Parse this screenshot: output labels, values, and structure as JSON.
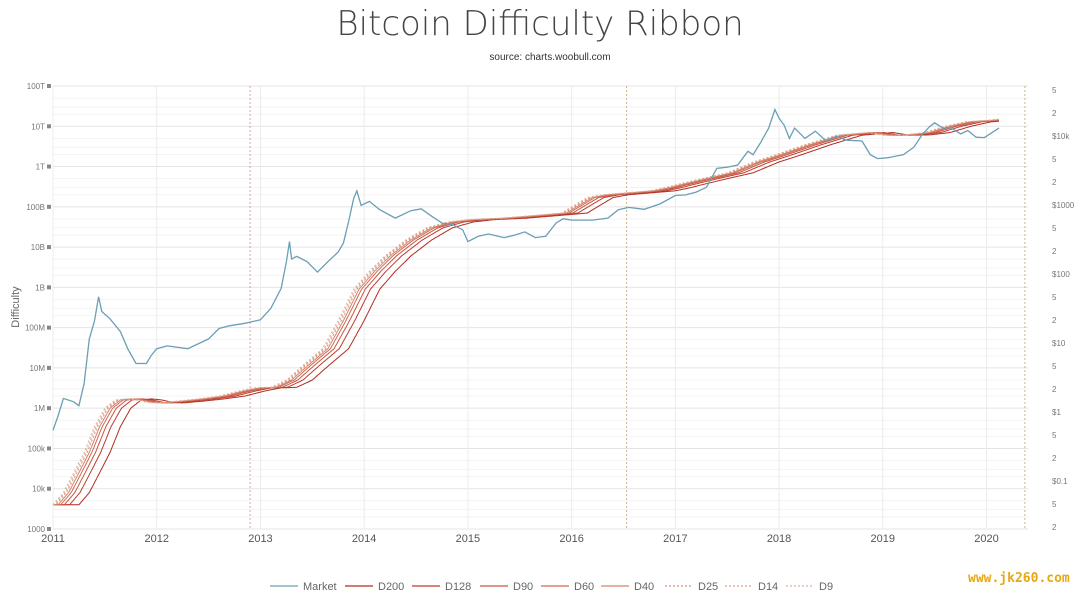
{
  "chart_data": {
    "type": "line",
    "title": "Bitcoin Difficulty Ribbon",
    "subtitle": "source: charts.woobull.com",
    "ylabel": "Difficulty",
    "yscale": "log",
    "left_ticks": [
      "100T",
      "10T",
      "1T",
      "100B",
      "10B",
      "1B",
      "100M",
      "10M",
      "1M",
      "100k",
      "10k",
      "1000"
    ],
    "right_ticks": [
      "5",
      "2",
      "$10k",
      "5",
      "2",
      "$1000",
      "5",
      "2",
      "$100",
      "5",
      "2",
      "$10",
      "5",
      "2",
      "$1",
      "5",
      "2",
      "$0.1",
      "5",
      "2"
    ],
    "x_ticks": [
      "2011",
      "2012",
      "2013",
      "2014",
      "2015",
      "2016",
      "2017",
      "2018",
      "2019",
      "2020"
    ],
    "halving_markers": [
      2012.9,
      2016.53,
      2020.37
    ],
    "market_price": {
      "name": "Market",
      "color": "#6a9fb5",
      "points": [
        [
          2011.0,
          0.3
        ],
        [
          2011.05,
          0.5
        ],
        [
          2011.1,
          0.9
        ],
        [
          2011.2,
          0.8
        ],
        [
          2011.25,
          0.7
        ],
        [
          2011.3,
          1.5
        ],
        [
          2011.35,
          7
        ],
        [
          2011.4,
          13
        ],
        [
          2011.44,
          30
        ],
        [
          2011.47,
          18
        ],
        [
          2011.55,
          14
        ],
        [
          2011.65,
          9
        ],
        [
          2011.72,
          5
        ],
        [
          2011.8,
          3
        ],
        [
          2011.9,
          3
        ],
        [
          2011.95,
          4
        ],
        [
          2012.0,
          5
        ],
        [
          2012.1,
          5.5
        ],
        [
          2012.3,
          5
        ],
        [
          2012.5,
          7
        ],
        [
          2012.6,
          10
        ],
        [
          2012.7,
          11
        ],
        [
          2012.85,
          12
        ],
        [
          2013.0,
          13.5
        ],
        [
          2013.1,
          20
        ],
        [
          2013.2,
          40
        ],
        [
          2013.25,
          100
        ],
        [
          2013.28,
          200
        ],
        [
          2013.3,
          110
        ],
        [
          2013.35,
          120
        ],
        [
          2013.45,
          100
        ],
        [
          2013.55,
          70
        ],
        [
          2013.65,
          100
        ],
        [
          2013.75,
          140
        ],
        [
          2013.8,
          190
        ],
        [
          2013.85,
          400
        ],
        [
          2013.9,
          900
        ],
        [
          2013.93,
          1150
        ],
        [
          2013.97,
          700
        ],
        [
          2014.05,
          800
        ],
        [
          2014.15,
          600
        ],
        [
          2014.3,
          450
        ],
        [
          2014.45,
          580
        ],
        [
          2014.55,
          620
        ],
        [
          2014.65,
          480
        ],
        [
          2014.75,
          380
        ],
        [
          2014.85,
          360
        ],
        [
          2014.95,
          300
        ],
        [
          2015.0,
          200
        ],
        [
          2015.1,
          240
        ],
        [
          2015.2,
          260
        ],
        [
          2015.35,
          230
        ],
        [
          2015.45,
          250
        ],
        [
          2015.55,
          280
        ],
        [
          2015.65,
          230
        ],
        [
          2015.75,
          240
        ],
        [
          2015.85,
          380
        ],
        [
          2015.92,
          440
        ],
        [
          2016.0,
          420
        ],
        [
          2016.2,
          420
        ],
        [
          2016.35,
          450
        ],
        [
          2016.45,
          600
        ],
        [
          2016.55,
          650
        ],
        [
          2016.7,
          610
        ],
        [
          2016.85,
          730
        ],
        [
          2017.0,
          980
        ],
        [
          2017.1,
          1000
        ],
        [
          2017.2,
          1100
        ],
        [
          2017.3,
          1300
        ],
        [
          2017.4,
          2500
        ],
        [
          2017.5,
          2600
        ],
        [
          2017.6,
          2800
        ],
        [
          2017.7,
          4500
        ],
        [
          2017.75,
          4000
        ],
        [
          2017.82,
          6000
        ],
        [
          2017.9,
          10000
        ],
        [
          2017.96,
          19000
        ],
        [
          2018.0,
          14000
        ],
        [
          2018.05,
          11000
        ],
        [
          2018.1,
          7000
        ],
        [
          2018.15,
          10000
        ],
        [
          2018.25,
          7000
        ],
        [
          2018.35,
          9000
        ],
        [
          2018.45,
          6500
        ],
        [
          2018.55,
          7500
        ],
        [
          2018.65,
          6600
        ],
        [
          2018.8,
          6400
        ],
        [
          2018.88,
          4000
        ],
        [
          2018.95,
          3500
        ],
        [
          2019.05,
          3600
        ],
        [
          2019.2,
          4000
        ],
        [
          2019.3,
          5200
        ],
        [
          2019.38,
          8000
        ],
        [
          2019.45,
          10500
        ],
        [
          2019.5,
          12000
        ],
        [
          2019.58,
          10000
        ],
        [
          2019.65,
          10200
        ],
        [
          2019.75,
          8200
        ],
        [
          2019.82,
          9200
        ],
        [
          2019.9,
          7300
        ],
        [
          2019.98,
          7200
        ],
        [
          2020.05,
          8500
        ],
        [
          2020.12,
          10000
        ]
      ]
    },
    "ribbon": {
      "base_points": [
        [
          2011.0,
          4000
        ],
        [
          2011.1,
          8000
        ],
        [
          2011.2,
          25000
        ],
        [
          2011.3,
          80000
        ],
        [
          2011.4,
          350000
        ],
        [
          2011.5,
          1000000
        ],
        [
          2011.6,
          1600000
        ],
        [
          2011.7,
          1700000
        ],
        [
          2011.8,
          1600000
        ],
        [
          2011.9,
          1400000
        ],
        [
          2012.0,
          1350000
        ],
        [
          2012.2,
          1500000
        ],
        [
          2012.4,
          1700000
        ],
        [
          2012.6,
          2000000
        ],
        [
          2012.8,
          2700000
        ],
        [
          2012.95,
          3200000
        ],
        [
          2013.1,
          3300000
        ],
        [
          2013.25,
          5000000
        ],
        [
          2013.4,
          11000000
        ],
        [
          2013.6,
          30000000
        ],
        [
          2013.75,
          150000000
        ],
        [
          2013.9,
          900000000
        ],
        [
          2014.05,
          2500000000
        ],
        [
          2014.2,
          6000000000
        ],
        [
          2014.4,
          15000000000
        ],
        [
          2014.6,
          30000000000
        ],
        [
          2014.8,
          42000000000
        ],
        [
          2015.0,
          48000000000
        ],
        [
          2015.3,
          52000000000
        ],
        [
          2015.6,
          60000000000
        ],
        [
          2015.9,
          70000000000
        ],
        [
          2016.0,
          100000000000
        ],
        [
          2016.15,
          170000000000
        ],
        [
          2016.3,
          200000000000
        ],
        [
          2016.5,
          220000000000
        ],
        [
          2016.75,
          250000000000
        ],
        [
          2016.9,
          300000000000
        ],
        [
          2017.0,
          350000000000
        ],
        [
          2017.25,
          500000000000
        ],
        [
          2017.5,
          700000000000
        ],
        [
          2017.75,
          1300000000000
        ],
        [
          2017.95,
          1900000000000
        ],
        [
          2018.25,
          3500000000000
        ],
        [
          2018.55,
          6000000000000
        ],
        [
          2018.85,
          7000000000000
        ],
        [
          2019.0,
          6000000000000
        ],
        [
          2019.2,
          6100000000000
        ],
        [
          2019.4,
          7000000000000
        ],
        [
          2019.6,
          10000000000000
        ],
        [
          2019.8,
          13000000000000
        ],
        [
          2020.0,
          14000000000000
        ],
        [
          2020.12,
          15000000000000
        ]
      ],
      "series": [
        {
          "name": "D200",
          "lag": 0.25,
          "color": "#b22a1e",
          "dash": ""
        },
        {
          "name": "D128",
          "lag": 0.16,
          "color": "#c03a2e",
          "dash": ""
        },
        {
          "name": "D90",
          "lag": 0.11,
          "color": "#c9543e",
          "dash": ""
        },
        {
          "name": "D60",
          "lag": 0.075,
          "color": "#cf6b55",
          "dash": ""
        },
        {
          "name": "D40",
          "lag": 0.05,
          "color": "#d4836b",
          "dash": ""
        },
        {
          "name": "D25",
          "lag": 0.03,
          "color": "#d79278",
          "dash": "2,2"
        },
        {
          "name": "D14",
          "lag": 0.015,
          "color": "#d9a18c",
          "dash": "2,2"
        },
        {
          "name": "D9",
          "lag": 0.0,
          "color": "#ddb0a0",
          "dash": "2,2"
        }
      ]
    },
    "legend": [
      "Market",
      "D200",
      "D128",
      "D90",
      "D60",
      "D40",
      "D25",
      "D14",
      "D9"
    ]
  },
  "watermark": "www.jk260.com"
}
